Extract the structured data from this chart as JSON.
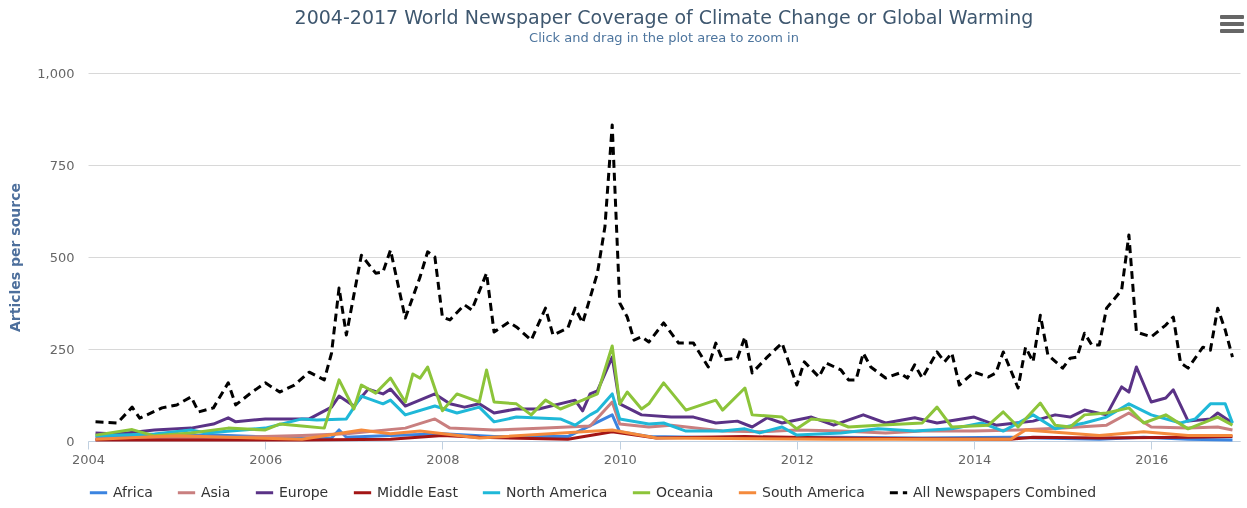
{
  "chart_data": {
    "type": "line",
    "title": "2004-2017 World Newspaper Coverage of Climate Change or Global Warming",
    "subtitle": "Click and drag in the plot area to zoom in",
    "ylabel": "Articles per source",
    "xlim": [
      "2004",
      "2017"
    ],
    "xticks": [
      "2004",
      "2006",
      "2008",
      "2010",
      "2012",
      "2014",
      "2016"
    ],
    "ylim": [
      0,
      1000
    ],
    "yticks": [
      0,
      250,
      500,
      750,
      {
        "value": 1000,
        "label": "1,000"
      }
    ],
    "grid": "y",
    "legend": "bottom",
    "series": [
      {
        "name": "Africa",
        "color": "#3b84e0",
        "x": [
          "2004-02",
          "2005-06",
          "2006-06",
          "2006-10",
          "2006-11",
          "2006-12",
          "2007-06",
          "2008-01",
          "2008-08",
          "2009-06",
          "2009-12",
          "2010-01",
          "2010-05",
          "2011-06",
          "2012-06",
          "2013-06",
          "2014-06",
          "2015-06",
          "2015-12",
          "2016-06",
          "2016-12"
        ],
        "values": [
          11,
          16,
          8,
          8,
          30,
          10,
          15,
          20,
          12,
          12,
          71,
          25,
          12,
          8,
          10,
          8,
          10,
          5,
          10,
          5,
          3
        ]
      },
      {
        "name": "Asia",
        "color": "#c97f7f",
        "x": [
          "2004-02",
          "2005-06",
          "2006-06",
          "2006-12",
          "2007-08",
          "2007-12",
          "2008-02",
          "2008-08",
          "2009-03",
          "2009-09",
          "2009-12",
          "2010-01",
          "2010-05",
          "2010-08",
          "2011-03",
          "2011-08",
          "2012-01",
          "2012-07",
          "2013-01",
          "2013-06",
          "2014-01",
          "2014-07",
          "2015-01",
          "2015-07",
          "2015-10",
          "2016-01",
          "2016-06",
          "2016-10",
          "2016-12"
        ],
        "values": [
          5,
          8,
          15,
          20,
          35,
          60,
          35,
          30,
          35,
          41,
          106,
          46,
          38,
          43,
          27,
          25,
          30,
          27,
          22,
          27,
          27,
          30,
          35,
          43,
          76,
          38,
          35,
          38,
          30
        ]
      },
      {
        "name": "Europe",
        "color": "#5a3286",
        "x": [
          "2004-02",
          "2004-05",
          "2004-10",
          "2005-03",
          "2005-06",
          "2005-08",
          "2005-09",
          "2006-01",
          "2006-07",
          "2006-10",
          "2006-11",
          "2007-01",
          "2007-03",
          "2007-05",
          "2007-06",
          "2007-08",
          "2007-12",
          "2008-02",
          "2008-04",
          "2008-06",
          "2008-08",
          "2008-11",
          "2009-02",
          "2009-07",
          "2009-08",
          "2009-09",
          "2009-10",
          "2009-12",
          "2010-01",
          "2010-04",
          "2010-08",
          "2010-11",
          "2011-02",
          "2011-05",
          "2011-07",
          "2011-09",
          "2011-11",
          "2012-03",
          "2012-06",
          "2012-10",
          "2013-01",
          "2013-05",
          "2013-08",
          "2014-01",
          "2014-04",
          "2014-09",
          "2014-12",
          "2015-02",
          "2015-04",
          "2015-07",
          "2015-09",
          "2015-10",
          "2015-11",
          "2016-01",
          "2016-03",
          "2016-04",
          "2016-06",
          "2016-09",
          "2016-10",
          "2016-12"
        ],
        "values": [
          22,
          19,
          30,
          35,
          46,
          63,
          52,
          60,
          60,
          92,
          122,
          95,
          141,
          128,
          141,
          95,
          128,
          101,
          92,
          101,
          76,
          87,
          87,
          111,
          82,
          128,
          136,
          228,
          101,
          71,
          65,
          65,
          49,
          54,
          38,
          63,
          49,
          65,
          43,
          71,
          49,
          63,
          49,
          65,
          43,
          54,
          71,
          65,
          84,
          71,
          147,
          133,
          201,
          106,
          117,
          139,
          54,
          60,
          76,
          49
        ]
      },
      {
        "name": "Middle East",
        "color": "#a31515",
        "x": [
          "2004-02",
          "2006-06",
          "2007-06",
          "2008-01",
          "2008-06",
          "2009-06",
          "2009-12",
          "2010-06",
          "2011-06",
          "2012-06",
          "2013-06",
          "2014-06",
          "2014-09",
          "2015-06",
          "2016-06",
          "2016-12"
        ],
        "values": [
          3,
          3,
          5,
          15,
          10,
          5,
          25,
          8,
          12,
          8,
          6,
          5,
          10,
          8,
          10,
          12
        ]
      },
      {
        "name": "North America",
        "color": "#1fb8d8",
        "x": [
          "2004-02",
          "2004-10",
          "2005-03",
          "2005-05",
          "2006-01",
          "2006-06",
          "2006-08",
          "2006-12",
          "2007-02",
          "2007-05",
          "2007-06",
          "2007-08",
          "2007-12",
          "2008-03",
          "2008-06",
          "2008-08",
          "2008-11",
          "2009-05",
          "2009-07",
          "2009-09",
          "2009-10",
          "2009-12",
          "2010-01",
          "2010-05",
          "2010-07",
          "2010-10",
          "2011-03",
          "2011-06",
          "2011-08",
          "2011-11",
          "2012-01",
          "2012-07",
          "2012-12",
          "2013-05",
          "2013-10",
          "2014-02",
          "2014-05",
          "2014-09",
          "2014-12",
          "2015-04",
          "2015-07",
          "2015-10",
          "2016-01",
          "2016-05",
          "2016-07",
          "2016-09",
          "2016-11",
          "2016-12"
        ],
        "values": [
          14,
          19,
          30,
          22,
          35,
          60,
          57,
          60,
          122,
          101,
          111,
          71,
          95,
          76,
          92,
          52,
          65,
          60,
          43,
          71,
          82,
          128,
          60,
          46,
          49,
          27,
          27,
          33,
          22,
          38,
          16,
          22,
          33,
          27,
          33,
          49,
          27,
          71,
          33,
          49,
          65,
          101,
          71,
          49,
          60,
          101,
          101,
          49
        ]
      },
      {
        "name": "Oceania",
        "color": "#8cc43a",
        "x": [
          "2004-02",
          "2004-07",
          "2004-10",
          "2005-03",
          "2005-08",
          "2006-01",
          "2006-03",
          "2006-06",
          "2006-09",
          "2006-11",
          "2007-01",
          "2007-02",
          "2007-04",
          "2007-06",
          "2007-08",
          "2007-09",
          "2007-10",
          "2007-11",
          "2008-01",
          "2008-03",
          "2008-06",
          "2008-07",
          "2008-08",
          "2008-11",
          "2009-01",
          "2009-03",
          "2009-05",
          "2009-08",
          "2009-10",
          "2009-12",
          "2010-01",
          "2010-02",
          "2010-04",
          "2010-05",
          "2010-07",
          "2010-10",
          "2011-02",
          "2011-03",
          "2011-06",
          "2011-07",
          "2011-11",
          "2012-01",
          "2012-03",
          "2012-06",
          "2012-08",
          "2012-12",
          "2013-06",
          "2013-08",
          "2013-10",
          "2014-03",
          "2014-05",
          "2014-07",
          "2014-10",
          "2014-12",
          "2015-02",
          "2015-04",
          "2015-07",
          "2015-10",
          "2015-12",
          "2016-03",
          "2016-06",
          "2016-10",
          "2016-12"
        ],
        "values": [
          16,
          31,
          14,
          22,
          35,
          30,
          46,
          41,
          35,
          166,
          87,
          152,
          130,
          171,
          106,
          182,
          171,
          201,
          82,
          128,
          106,
          193,
          106,
          101,
          71,
          111,
          87,
          111,
          128,
          258,
          101,
          133,
          87,
          101,
          158,
          84,
          111,
          84,
          144,
          71,
          65,
          33,
          60,
          54,
          38,
          43,
          49,
          92,
          38,
          43,
          79,
          38,
          103,
          43,
          38,
          71,
          76,
          90,
          49,
          71,
          33,
          65,
          43
        ]
      },
      {
        "name": "South America",
        "color": "#f48a3c",
        "x": [
          "2004-02",
          "2005-01",
          "2006-06",
          "2007-02",
          "2007-06",
          "2007-10",
          "2008-06",
          "2009-12",
          "2010-06",
          "2012-06",
          "2014-06",
          "2014-08",
          "2015-06",
          "2015-12",
          "2016-06",
          "2016-12"
        ],
        "values": [
          5,
          14,
          5,
          30,
          20,
          27,
          8,
          30,
          8,
          5,
          5,
          30,
          15,
          25,
          15,
          15
        ]
      },
      {
        "name": "All Newspapers Combined",
        "color": "#000000",
        "line_style": "dashed",
        "x": [
          "2004-02",
          "2004-05",
          "2004-07",
          "2004-08",
          "2004-11",
          "2005-01",
          "2005-03",
          "2005-04",
          "2005-06",
          "2005-08",
          "2005-09",
          "2005-11",
          "2006-01",
          "2006-03",
          "2006-05",
          "2006-07",
          "2006-09",
          "2006-10",
          "2006-11",
          "2006-12",
          "2007-02",
          "2007-04",
          "2007-05",
          "2007-06",
          "2007-08",
          "2007-10",
          "2007-11",
          "2007-12",
          "2008-01",
          "2008-02",
          "2008-04",
          "2008-05",
          "2008-07",
          "2008-08",
          "2008-10",
          "2008-11",
          "2009-01",
          "2009-03",
          "2009-04",
          "2009-06",
          "2009-07",
          "2009-08",
          "2009-10",
          "2009-11",
          "2009-12",
          "2010-01",
          "2010-02",
          "2010-03",
          "2010-04",
          "2010-05",
          "2010-07",
          "2010-09",
          "2010-11",
          "2011-01",
          "2011-02",
          "2011-03",
          "2011-05",
          "2011-06",
          "2011-07",
          "2011-09",
          "2011-11",
          "2012-01",
          "2012-02",
          "2012-04",
          "2012-05",
          "2012-07",
          "2012-08",
          "2012-09",
          "2012-10",
          "2012-11",
          "2013-01",
          "2013-03",
          "2013-04",
          "2013-05",
          "2013-06",
          "2013-08",
          "2013-09",
          "2013-10",
          "2013-11",
          "2014-01",
          "2014-03",
          "2014-04",
          "2014-05",
          "2014-07",
          "2014-08",
          "2014-09",
          "2014-10",
          "2014-11",
          "2015-01",
          "2015-02",
          "2015-03",
          "2015-04",
          "2015-05",
          "2015-06",
          "2015-07",
          "2015-09",
          "2015-10",
          "2015-11",
          "2016-01",
          "2016-03",
          "2016-04",
          "2016-05",
          "2016-06",
          "2016-08",
          "2016-09",
          "2016-10",
          "2016-11",
          "2016-12"
        ],
        "values": [
          52,
          49,
          92,
          62,
          90,
          98,
          120,
          79,
          90,
          158,
          98,
          130,
          158,
          133,
          152,
          187,
          166,
          239,
          416,
          288,
          505,
          456,
          459,
          519,
          334,
          446,
          514,
          500,
          337,
          329,
          370,
          356,
          456,
          296,
          323,
          310,
          274,
          361,
          288,
          307,
          361,
          321,
          456,
          582,
          859,
          375,
          337,
          274,
          283,
          269,
          321,
          266,
          266,
          201,
          266,
          220,
          225,
          283,
          185,
          228,
          266,
          152,
          215,
          174,
          212,
          193,
          166,
          166,
          239,
          201,
          171,
          185,
          171,
          207,
          171,
          242,
          215,
          239,
          152,
          187,
          174,
          185,
          242,
          144,
          255,
          215,
          342,
          234,
          198,
          225,
          228,
          293,
          261,
          261,
          361,
          410,
          560,
          296,
          283,
          315,
          337,
          212,
          198,
          255,
          247,
          361,
          302,
          228
        ]
      }
    ]
  }
}
